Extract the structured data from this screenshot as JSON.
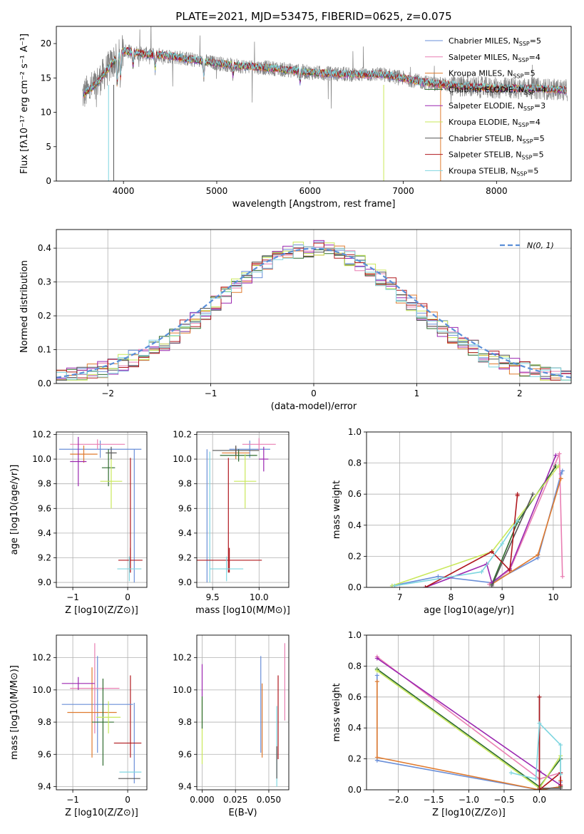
{
  "title": "PLATE=2021, MJD=53475, FIBERID=0625, z=0.075",
  "colors": {
    "Chabrier MILES": "#6a8fd8",
    "Salpeter MILES": "#e97fb3",
    "Kroupa MILES": "#e07b2f",
    "Chabrier ELODIE": "#2e6b2e",
    "Salpeter ELODIE": "#9b27b0",
    "Kroupa ELODIE": "#c9e85a",
    "Chabrier STELIB": "#555555",
    "Salpeter STELIB": "#b0181e",
    "Kroupa STELIB": "#7fd6e0",
    "data": "#808080",
    "normal": "#5b8fd8"
  },
  "chart_data": [
    {
      "id": "spectrum",
      "type": "line",
      "xlabel": "wavelength [Angstrom, rest frame]",
      "ylabel": "Flux [fλ10⁻¹⁷ erg cm⁻² s⁻¹ A⁻¹]",
      "xlim": [
        3280,
        8800
      ],
      "ylim": [
        0,
        22.5
      ],
      "xticks": [
        4000,
        5000,
        6000,
        7000,
        8000
      ],
      "yticks": [
        0,
        5,
        10,
        15,
        20
      ],
      "legend_placement": "top-right",
      "legend": [
        {
          "prefix": "Chabrier MILES, N",
          "n": 5
        },
        {
          "prefix": "Salpeter MILES, N",
          "n": 4
        },
        {
          "prefix": "Kroupa MILES, N",
          "n": 5
        },
        {
          "prefix": "Chabrier ELODIE, N",
          "n": 4
        },
        {
          "prefix": "Salpeter ELODIE, N",
          "n": 3
        },
        {
          "prefix": "Kroupa ELODIE, N",
          "n": 4
        },
        {
          "prefix": "Chabrier STELIB, N",
          "n": 5
        },
        {
          "prefix": "Salpeter STELIB, N",
          "n": 5
        },
        {
          "prefix": "Kroupa STELIB, N",
          "n": 5
        }
      ],
      "legend_subscript": "SSP",
      "continuum": {
        "x": [
          3560,
          3700,
          3900,
          4000,
          4200,
          4500,
          4800,
          5200,
          5600,
          6000,
          6400,
          6800,
          7200,
          7600,
          8000,
          8400,
          8760
        ],
        "y": [
          12.5,
          14.0,
          17.5,
          19.0,
          18.5,
          18.2,
          17.5,
          16.8,
          16.4,
          15.8,
          15.5,
          15.5,
          14.4,
          13.8,
          13.5,
          13.5,
          13.2
        ]
      }
    },
    {
      "id": "residuals",
      "type": "line",
      "xlabel": "(data-model)/error",
      "ylabel": "Normed distribution",
      "xlim": [
        -2.5,
        2.5
      ],
      "ylim": [
        0,
        0.455
      ],
      "xticks": [
        -2,
        -1,
        0,
        1,
        2
      ],
      "yticks": [
        0.0,
        0.1,
        0.2,
        0.3,
        0.4
      ],
      "bin_width": 0.1,
      "normal_label": "N(0, 1)"
    },
    {
      "id": "age-vs-Z",
      "type": "scatter",
      "xlabel": "Z [log10(Z/Z⊙)]",
      "ylabel": "age [log10(age/yr)]",
      "xlim": [
        -1.3,
        0.35
      ],
      "ylim": [
        8.96,
        10.22
      ],
      "xticks": [
        -1,
        0
      ],
      "yticks": [
        9.0,
        9.2,
        9.4,
        9.6,
        9.8,
        10.0,
        10.2
      ],
      "points": [
        {
          "model": "Chabrier MILES",
          "x": -0.5,
          "xerr": 0.75,
          "y": 10.08,
          "yerr": 0.07
        },
        {
          "model": "Salpeter MILES",
          "x": -0.55,
          "xerr": 0.5,
          "y": 10.12,
          "yerr": 0.04
        },
        {
          "model": "Kroupa MILES",
          "x": -0.8,
          "xerr": 0.25,
          "y": 10.04,
          "yerr": 0.07
        },
        {
          "model": "Chabrier ELODIE",
          "x": -0.35,
          "xerr": 0.12,
          "y": 9.93,
          "yerr": 0.15
        },
        {
          "model": "Salpeter ELODIE",
          "x": -0.9,
          "xerr": 0.15,
          "y": 9.98,
          "yerr": 0.2
        },
        {
          "model": "Kroupa ELODIE",
          "x": -0.3,
          "xerr": 0.2,
          "y": 9.82,
          "yerr": 0.22
        },
        {
          "model": "Chabrier STELIB",
          "x": -0.3,
          "xerr": 0.1,
          "y": 10.05,
          "yerr": 0.05
        },
        {
          "model": "Salpeter STELIB",
          "x": 0.05,
          "xerr": 0.22,
          "y": 9.18,
          "yerr": 0.1
        },
        {
          "model": "Kroupa STELIB",
          "x": 0.03,
          "xerr": 0.22,
          "y": 9.11,
          "yerr": 0.1
        }
      ],
      "extra_lines": [
        {
          "model": "Chabrier MILES",
          "x": 0.12,
          "y1": 9.0,
          "y2": 10.08
        },
        {
          "model": "Salpeter STELIB",
          "x": 0.05,
          "y1": 9.08,
          "y2": 10.01
        }
      ]
    },
    {
      "id": "age-vs-mass",
      "type": "scatter",
      "xlabel": "mass [log10(M/M⊙)]",
      "ylabel": "",
      "xlim": [
        9.33,
        10.32
      ],
      "ylim": [
        8.96,
        10.22
      ],
      "xticks": [
        9.5,
        10.0
      ],
      "yticks": [
        9.0,
        9.2,
        9.4,
        9.6,
        9.8,
        10.0,
        10.2
      ],
      "points": [
        {
          "model": "Chabrier MILES",
          "x": 9.9,
          "xerr": 0.22,
          "y": 10.08,
          "yerr": 0.07
        },
        {
          "model": "Salpeter MILES",
          "x": 10.0,
          "xerr": 0.18,
          "y": 10.12,
          "yerr": 0.05
        },
        {
          "model": "Kroupa MILES",
          "x": 9.75,
          "xerr": 0.15,
          "y": 10.05,
          "yerr": 0.05
        },
        {
          "model": "Chabrier ELODIE",
          "x": 9.78,
          "xerr": 0.2,
          "y": 10.03,
          "yerr": 0.05
        },
        {
          "model": "Salpeter ELODIE",
          "x": 10.05,
          "xerr": 0.05,
          "y": 10.0,
          "yerr": 0.1
        },
        {
          "model": "Kroupa ELODIE",
          "x": 9.85,
          "xerr": 0.12,
          "y": 9.82,
          "yerr": 0.22
        },
        {
          "model": "Chabrier STELIB",
          "x": 9.75,
          "xerr": 0.25,
          "y": 10.07,
          "yerr": 0.04
        },
        {
          "model": "Salpeter STELIB",
          "x": 9.68,
          "xerr": 0.35,
          "y": 9.18,
          "yerr": 0.1
        },
        {
          "model": "Kroupa STELIB",
          "x": 9.65,
          "xerr": 0.18,
          "y": 9.11,
          "yerr": 0.1
        }
      ],
      "extra_lines": [
        {
          "model": "Chabrier MILES",
          "x": 9.44,
          "y1": 9.0,
          "y2": 10.08
        },
        {
          "model": "Kroupa STELIB",
          "x": 9.47,
          "y1": 9.0,
          "y2": 10.06
        },
        {
          "model": "Salpeter STELIB",
          "x": 9.67,
          "y1": 9.08,
          "y2": 10.01
        }
      ]
    },
    {
      "id": "mass-weight-vs-age",
      "type": "line",
      "xlabel": "age [log10(age/yr)]",
      "ylabel": "mass weight",
      "xlim": [
        6.35,
        10.35
      ],
      "ylim": [
        0,
        1.0
      ],
      "xticks": [
        7,
        8,
        9,
        10
      ],
      "yticks": [
        0.0,
        0.2,
        0.4,
        0.6,
        0.8,
        1.0
      ],
      "series": [
        {
          "model": "Chabrier MILES",
          "x": [
            6.85,
            7.75,
            8.8,
            9.7,
            10.15,
            10.18
          ],
          "y": [
            0.01,
            0.07,
            0.03,
            0.19,
            0.73,
            0.75
          ]
        },
        {
          "model": "Salpeter MILES",
          "x": [
            8.75,
            9.15,
            10.12,
            10.18
          ],
          "y": [
            0.02,
            0.11,
            0.86,
            0.07
          ]
        },
        {
          "model": "Kroupa MILES",
          "x": [
            8.8,
            9.7,
            10.15
          ],
          "y": [
            0.02,
            0.21,
            0.7
          ]
        },
        {
          "model": "Chabrier ELODIE",
          "x": [
            8.8,
            9.3,
            10.05
          ],
          "y": [
            0.02,
            0.42,
            0.78
          ]
        },
        {
          "model": "Salpeter ELODIE",
          "x": [
            7.5,
            8.7,
            8.8,
            9.15,
            10.05
          ],
          "y": [
            0.0,
            0.15,
            0.03,
            0.12,
            0.85
          ]
        },
        {
          "model": "Kroupa ELODIE",
          "x": [
            6.85,
            8.8,
            10.1
          ],
          "y": [
            0.01,
            0.23,
            0.78
          ]
        },
        {
          "model": "Chabrier STELIB",
          "x": [
            8.8,
            9.6
          ],
          "y": [
            0.01,
            0.6
          ]
        },
        {
          "model": "Salpeter STELIB",
          "x": [
            7.5,
            8.8,
            9.15,
            9.3,
            9.3
          ],
          "y": [
            0.0,
            0.23,
            0.11,
            0.6,
            0.59
          ]
        },
        {
          "model": "Kroupa STELIB",
          "x": [
            6.9,
            8.6,
            9.0,
            9.3
          ],
          "y": [
            0.01,
            0.1,
            0.28,
            0.43
          ]
        }
      ]
    },
    {
      "id": "mass-vs-Z",
      "type": "scatter",
      "xlabel": "Z [log10(Z/Z⊙)]",
      "ylabel": "mass [log10(M/M⊙)]",
      "xlim": [
        -1.3,
        0.35
      ],
      "ylim": [
        9.38,
        10.34
      ],
      "xticks": [
        -1,
        0
      ],
      "yticks": [
        9.4,
        9.6,
        9.8,
        10.0,
        10.2
      ],
      "points": [
        {
          "model": "Chabrier MILES",
          "x": -0.55,
          "xerr": 0.65,
          "y": 9.91,
          "yerr": 0.3
        },
        {
          "model": "Salpeter MILES",
          "x": -0.6,
          "xerr": 0.45,
          "y": 10.01,
          "yerr": 0.28
        },
        {
          "model": "Kroupa MILES",
          "x": -0.65,
          "xerr": 0.45,
          "y": 9.86,
          "yerr": 0.28
        },
        {
          "model": "Chabrier ELODIE",
          "x": -0.45,
          "xerr": 0.2,
          "y": 9.8,
          "yerr": 0.27
        },
        {
          "model": "Salpeter ELODIE",
          "x": -0.9,
          "xerr": 0.3,
          "y": 10.04,
          "yerr": 0.04
        },
        {
          "model": "Kroupa ELODIE",
          "x": -0.35,
          "xerr": 0.22,
          "y": 9.83,
          "yerr": 0.1
        },
        {
          "model": "Chabrier STELIB",
          "x": 0.03,
          "xerr": 0.2,
          "y": 9.45,
          "yerr": 0.0
        },
        {
          "model": "Salpeter STELIB",
          "x": 0.0,
          "xerr": 0.25,
          "y": 9.67,
          "yerr": 0.0
        },
        {
          "model": "Kroupa STELIB",
          "x": 0.05,
          "xerr": 0.2,
          "y": 9.49,
          "yerr": 0.0
        }
      ],
      "extra_lines": [
        {
          "model": "Salpeter STELIB",
          "x": 0.05,
          "y1": 9.58,
          "y2": 10.09
        },
        {
          "model": "Chabrier MILES",
          "x": 0.12,
          "y1": 9.42,
          "y2": 9.92
        }
      ]
    },
    {
      "id": "mass-vs-ebv",
      "type": "scatter",
      "xlabel": "E(B-V)",
      "ylabel": "",
      "xlim": [
        -0.004,
        0.065
      ],
      "ylim": [
        9.38,
        10.34
      ],
      "xticks": [
        0.0,
        0.025,
        0.05
      ],
      "xtick_labels": [
        "0.000",
        "0.025",
        "0.050"
      ],
      "yticks": [
        9.4,
        9.6,
        9.8,
        10.0,
        10.2
      ],
      "points": [
        {
          "model": "Salpeter ELODIE",
          "x": 0.0,
          "xerr": 0,
          "y": 10.06,
          "yerr": 0.1
        },
        {
          "model": "Kroupa ELODIE",
          "x": 0.0,
          "xerr": 0,
          "y": 9.74,
          "yerr": 0.2
        },
        {
          "model": "Chabrier ELODIE",
          "x": 0.0,
          "xerr": 0,
          "y": 9.86,
          "yerr": 0.1
        },
        {
          "model": "Chabrier MILES",
          "x": 0.044,
          "xerr": 0,
          "y": 9.91,
          "yerr": 0.3
        },
        {
          "model": "Kroupa MILES",
          "x": 0.045,
          "xerr": 0,
          "y": 9.81,
          "yerr": 0.23
        },
        {
          "model": "Salpeter STELIB",
          "x": 0.057,
          "xerr": 0,
          "y": 9.83,
          "yerr": 0.26
        },
        {
          "model": "Kroupa STELIB",
          "x": 0.056,
          "xerr": 0,
          "y": 9.65,
          "yerr": 0.25
        },
        {
          "model": "Chabrier STELIB",
          "x": 0.056,
          "xerr": 0,
          "y": 9.55,
          "yerr": 0.1
        },
        {
          "model": "Salpeter MILES",
          "x": 0.062,
          "xerr": 0,
          "y": 10.05,
          "yerr": 0.24
        }
      ]
    },
    {
      "id": "mass-weight-vs-Z",
      "type": "line",
      "xlabel": "Z [log10(Z/Z⊙)]",
      "ylabel": "mass weight",
      "xlim": [
        -2.45,
        0.45
      ],
      "ylim": [
        0,
        1.0
      ],
      "xticks": [
        -2.0,
        -1.5,
        -1.0,
        -0.5,
        0.0
      ],
      "xtick_labels": [
        "−2.0",
        "−1.5",
        "−1.0",
        "−0.5",
        "0.0"
      ],
      "yticks": [
        0.0,
        0.2,
        0.4,
        0.6,
        0.8,
        1.0
      ],
      "series": [
        {
          "model": "Chabrier MILES",
          "x": [
            -2.3,
            -2.3,
            0.0,
            0.3,
            0.3
          ],
          "y": [
            0.74,
            0.19,
            0.0,
            0.02,
            0.05
          ]
        },
        {
          "model": "Salpeter MILES",
          "x": [
            -2.3,
            0.0,
            0.3,
            0.3
          ],
          "y": [
            0.86,
            0.07,
            0.11,
            0.02
          ]
        },
        {
          "model": "Kroupa MILES",
          "x": [
            -2.3,
            -2.3,
            0.0,
            0.3,
            0.3
          ],
          "y": [
            0.7,
            0.21,
            0.0,
            0.02,
            0.06
          ]
        },
        {
          "model": "Chabrier ELODIE",
          "x": [
            -2.3,
            0.0,
            0.3,
            0.3
          ],
          "y": [
            0.78,
            0.02,
            0.2,
            0.02
          ]
        },
        {
          "model": "Salpeter ELODIE",
          "x": [
            -2.3,
            0.0,
            0.3
          ],
          "y": [
            0.85,
            0.12,
            0.03
          ]
        },
        {
          "model": "Kroupa ELODIE",
          "x": [
            -2.3,
            0.0,
            0.3
          ],
          "y": [
            0.77,
            0.01,
            0.22
          ]
        },
        {
          "model": "Chabrier STELIB",
          "x": [
            0.0,
            0.0,
            0.3
          ],
          "y": [
            0.6,
            0.01,
            0.01
          ]
        },
        {
          "model": "Salpeter STELIB",
          "x": [
            0.0,
            0.0,
            0.3,
            0.3
          ],
          "y": [
            0.6,
            0.0,
            0.11,
            0.03
          ]
        },
        {
          "model": "Kroupa STELIB",
          "x": [
            -0.4,
            -0.05,
            0.0,
            0.3,
            0.3
          ],
          "y": [
            0.11,
            0.07,
            0.43,
            0.29,
            0.1
          ]
        }
      ]
    }
  ]
}
